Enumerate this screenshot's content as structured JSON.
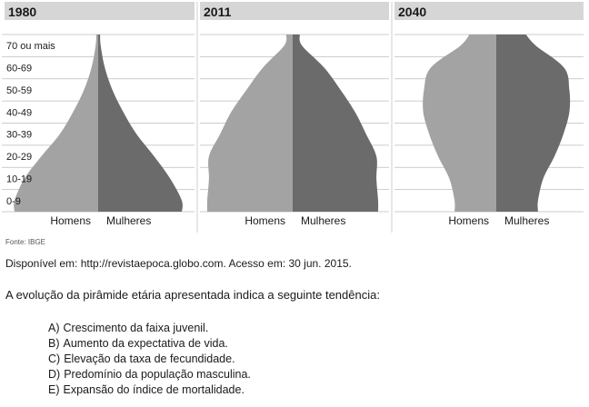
{
  "chart_data": {
    "type": "population-pyramid",
    "age_groups": [
      "0-9",
      "10-19",
      "20-29",
      "30-39",
      "40-49",
      "50-59",
      "60-69",
      "70 ou mais"
    ],
    "sex_labels": [
      "Homens",
      "Mulheres"
    ],
    "panels": [
      {
        "title": "1980",
        "homens": [
          100,
          88,
          68,
          46,
          30,
          17,
          8,
          3
        ],
        "mulheres": [
          100,
          86,
          67,
          46,
          30,
          17,
          8,
          3
        ]
      },
      {
        "title": "2011",
        "homens": [
          100,
          98,
          98,
          85,
          72,
          54,
          35,
          10
        ],
        "mulheres": [
          100,
          98,
          98,
          86,
          73,
          56,
          37,
          11
        ]
      },
      {
        "title": "2040",
        "homens": [
          56,
          63,
          78,
          90,
          98,
          97,
          88,
          48
        ],
        "mulheres": [
          56,
          63,
          78,
          90,
          98,
          98,
          91,
          53
        ]
      }
    ],
    "colors": {
      "homens": "#a3a3a3",
      "mulheres": "#6b6b6b",
      "header": "#d6d6d6",
      "grid": "#bdbdbd"
    },
    "grid": true
  },
  "source_label": "Fonte: IBGE",
  "credit": "Disponível em: http://revistaepoca.globo.com. Acesso em: 30 jun. 2015.",
  "question": "A evolução da pirâmide etária apresentada indica a seguinte tendência:",
  "options": [
    {
      "letter": "A)",
      "text": "Crescimento da faixa juvenil."
    },
    {
      "letter": "B)",
      "text": "Aumento da expectativa de vida."
    },
    {
      "letter": "C)",
      "text": "Elevação da taxa de fecundidade."
    },
    {
      "letter": "D)",
      "text": "Predomínio da população masculina."
    },
    {
      "letter": "E)",
      "text": "Expansão do índice de mortalidade."
    }
  ]
}
